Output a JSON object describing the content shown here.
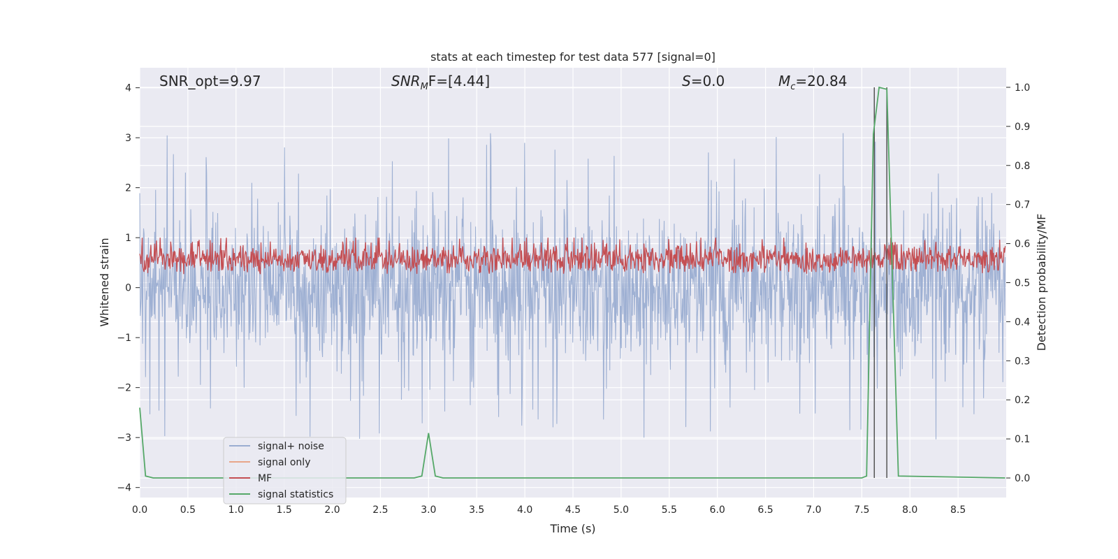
{
  "chart_data": {
    "type": "line",
    "title": "stats at each timestep for test data 577 [signal=0]",
    "xlabel": "Time (s)",
    "ylabel": "Whitened strain",
    "ylabel_right": "Detection probability/MF",
    "xlim": [
      0.0,
      9.0
    ],
    "ylim": [
      -4.2,
      4.4
    ],
    "ylim_right": [
      -0.05,
      1.05
    ],
    "xticks": [
      "0.0",
      "0.5",
      "1.0",
      "1.5",
      "2.0",
      "2.5",
      "3.0",
      "3.5",
      "4.0",
      "4.5",
      "5.0",
      "5.5",
      "6.0",
      "6.5",
      "7.0",
      "7.5",
      "8.0",
      "8.5"
    ],
    "yticks": [
      "-4",
      "-3",
      "-2",
      "-1",
      "0",
      "1",
      "2",
      "3",
      "4"
    ],
    "yticks_right": [
      "0.0",
      "0.1",
      "0.2",
      "0.3",
      "0.4",
      "0.5",
      "0.6",
      "0.7",
      "0.8",
      "0.9",
      "1.0"
    ],
    "grid": true,
    "legend_position": "lower-left",
    "annotations": {
      "snr_opt": "SNR_opt=9.97",
      "snr_mf_main": "SNR",
      "snr_mf_sub": "M",
      "snr_mf_rest": "F=[4.44]",
      "s_main": "S",
      "s_rest": "=0.0",
      "mc_main": "M",
      "mc_sub": "c",
      "mc_rest": "=20.84"
    },
    "series": [
      {
        "name": "signal+ noise",
        "color": "#9aadd1",
        "description_values": {
          "typical_range": [
            -1.7,
            1.7
          ],
          "peak_max": 4.0,
          "peak_min": -3.7
        }
      },
      {
        "name": "signal only",
        "color": "#e8a589",
        "values": []
      },
      {
        "name": "MF",
        "color": "#c44e52",
        "axis": "right",
        "typical_range": [
          0.5,
          0.62
        ]
      },
      {
        "name": "signal statistics",
        "color": "#55a868",
        "axis": "right",
        "x": [
          0.0,
          0.06,
          0.14,
          2.85,
          2.93,
          3.0,
          3.07,
          3.15,
          7.5,
          7.55,
          7.62,
          7.68,
          7.76,
          7.82,
          7.88,
          8.99
        ],
        "values": [
          0.18,
          0.005,
          0.0,
          0.0,
          0.005,
          0.115,
          0.005,
          0.0,
          0.0,
          0.005,
          0.88,
          1.0,
          0.995,
          0.5,
          0.005,
          0.0
        ]
      }
    ],
    "vlines": [
      {
        "x": 7.63,
        "ymin": -0.0,
        "ymax": 1.0,
        "color": "#555555"
      },
      {
        "x": 7.76,
        "ymin": -0.0,
        "ymax": 1.0,
        "color": "#555555"
      }
    ]
  }
}
